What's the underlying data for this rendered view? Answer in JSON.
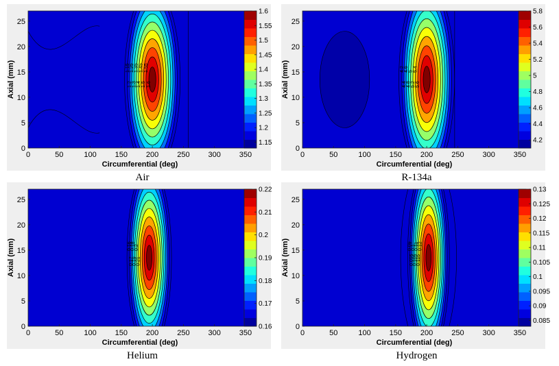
{
  "chart_data": [
    {
      "type": "heatmap",
      "caption": "Air",
      "xlabel": "Circumferential (deg)",
      "ylabel": "Axial (mm)",
      "xlim": [
        0,
        360
      ],
      "ylim": [
        0,
        27
      ],
      "xticks": [
        "0",
        "50",
        "100",
        "150",
        "200",
        "250",
        "300",
        "350"
      ],
      "yticks": [
        "0",
        "5",
        "10",
        "15",
        "20",
        "25"
      ],
      "colorbar": {
        "min": 1.13,
        "max": 1.6,
        "ticks": [
          "1.15",
          "1.2",
          "1.25",
          "1.3",
          "1.35",
          "1.4",
          "1.45",
          "1.5",
          "1.55",
          "1.6"
        ]
      },
      "peak": {
        "x": 200,
        "y": 13.5,
        "value": 1.6
      },
      "contour_labels": [
        "1.15",
        "1.2",
        "1.25",
        "1.3",
        "1.35",
        "1.4",
        "1.45",
        "1.5",
        "1.55",
        "1.6"
      ]
    },
    {
      "type": "heatmap",
      "caption": "R-134a",
      "xlabel": "Circumferential (deg)",
      "ylabel": "Axial (mm)",
      "xlim": [
        0,
        360
      ],
      "ylim": [
        0,
        27
      ],
      "xticks": [
        "0",
        "50",
        "100",
        "150",
        "200",
        "250",
        "300",
        "350"
      ],
      "yticks": [
        "0",
        "5",
        "10",
        "15",
        "20",
        "25"
      ],
      "colorbar": {
        "min": 4.1,
        "max": 5.8,
        "ticks": [
          "4.2",
          "4.4",
          "4.6",
          "4.8",
          "5",
          "5.2",
          "5.4",
          "5.6",
          "5.8"
        ]
      },
      "peak": {
        "x": 200,
        "y": 13.5,
        "value": 5.8
      },
      "contour_labels": [
        "4.2",
        "4.4",
        "4.6",
        "4.8",
        "5",
        "5.2",
        "5.4",
        "5.6"
      ]
    },
    {
      "type": "heatmap",
      "caption": "Helium",
      "xlabel": "Circumferential (deg)",
      "ylabel": "Axial (mm)",
      "xlim": [
        0,
        360
      ],
      "ylim": [
        0,
        27
      ],
      "xticks": [
        "0",
        "50",
        "100",
        "150",
        "200",
        "250",
        "300",
        "350"
      ],
      "yticks": [
        "0",
        "5",
        "10",
        "15",
        "20",
        "25"
      ],
      "colorbar": {
        "min": 0.16,
        "max": 0.22,
        "ticks": [
          "0.16",
          "0.17",
          "0.18",
          "0.19",
          "0.2",
          "0.21",
          "0.22"
        ]
      },
      "peak": {
        "x": 195,
        "y": 13.5,
        "value": 0.22
      },
      "contour_labels": [
        "0.16",
        "0.17",
        "0.18",
        "0.19",
        "0.2",
        "0.21"
      ]
    },
    {
      "type": "heatmap",
      "caption": "Hydrogen",
      "xlabel": "Circumferential (deg)",
      "ylabel": "Axial (mm)",
      "xlim": [
        0,
        360
      ],
      "ylim": [
        0,
        27
      ],
      "xticks": [
        "0",
        "50",
        "100",
        "150",
        "200",
        "250",
        "300",
        "350"
      ],
      "yticks": [
        "0",
        "5",
        "10",
        "15",
        "20",
        "25"
      ],
      "colorbar": {
        "min": 0.083,
        "max": 0.13,
        "ticks": [
          "0.085",
          "0.09",
          "0.095",
          "0.1",
          "0.105",
          "0.11",
          "0.115",
          "0.12",
          "0.125",
          "0.13"
        ]
      },
      "peak": {
        "x": 203,
        "y": 13.5,
        "value": 0.13
      },
      "contour_labels": [
        "0.09",
        "0.095",
        "0.1",
        "0.105",
        "0.11",
        "0.115",
        "0.12"
      ]
    }
  ]
}
